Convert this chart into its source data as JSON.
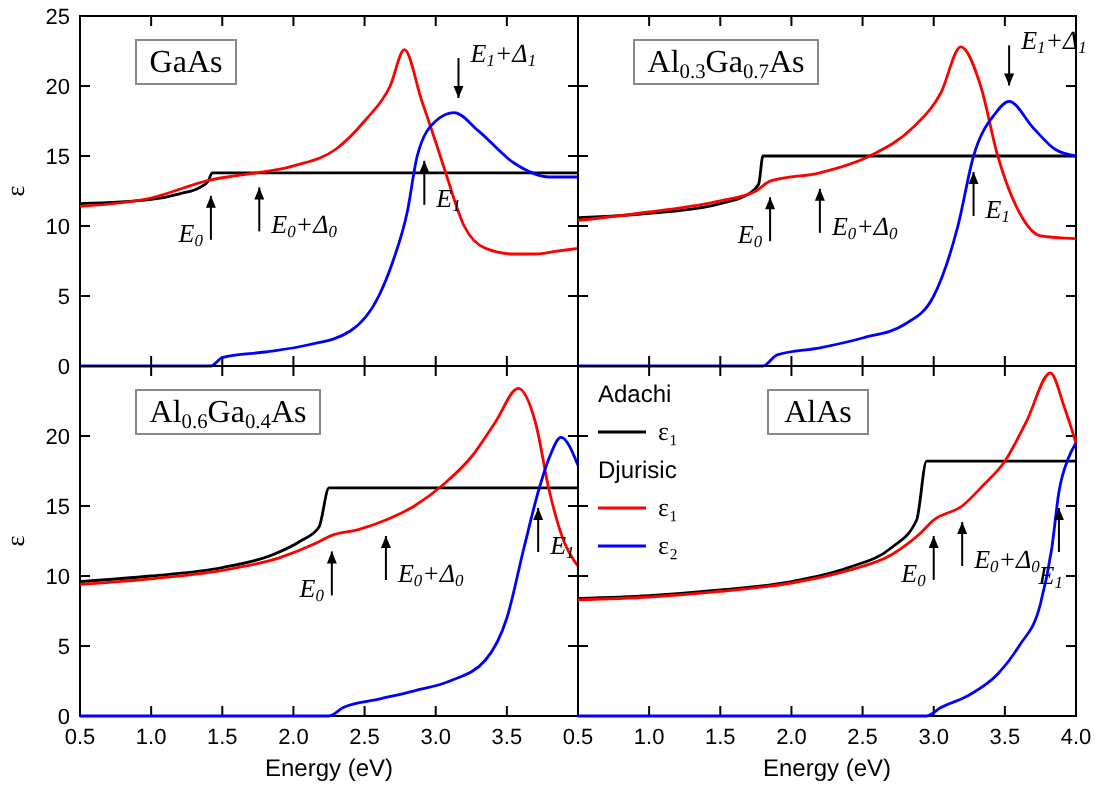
{
  "chart_data": [
    {
      "type": "line",
      "title": "GaAs",
      "ylabel": "ε",
      "xlim": [
        0.5,
        4.0
      ],
      "ylim": [
        0,
        25
      ],
      "xticks": [
        0.5,
        1,
        1.5,
        2,
        2.5,
        3,
        3.5
      ],
      "yticks": [
        0,
        5,
        10,
        15,
        20,
        25
      ],
      "tick_labels": "y",
      "legend": false,
      "series": [
        {
          "color": "#000000",
          "x": [
            0.5,
            1.0,
            1.2,
            1.35,
            1.4,
            1.43,
            4.0
          ],
          "values": [
            11.6,
            11.9,
            12.3,
            12.8,
            13.2,
            13.8,
            13.8
          ]
        },
        {
          "color": "#ff0000",
          "x": [
            0.5,
            1.0,
            1.42,
            1.6,
            2.0,
            2.3,
            2.5,
            2.68,
            2.78,
            2.9,
            3.0,
            3.07,
            3.2,
            3.35,
            3.55,
            3.7,
            3.85,
            4.0
          ],
          "values": [
            11.4,
            12.0,
            13.3,
            13.6,
            14.3,
            15.5,
            17.5,
            20.0,
            22.6,
            19.0,
            16.0,
            13.8,
            10.0,
            8.4,
            8.0,
            8.0,
            8.2,
            8.4
          ]
        },
        {
          "color": "#0000ff",
          "x": [
            0.5,
            1.42,
            1.5,
            1.8,
            2.1,
            2.4,
            2.6,
            2.7,
            2.8,
            2.87,
            3.0,
            3.13,
            3.3,
            3.55,
            3.8,
            4.0
          ],
          "values": [
            0,
            0,
            0.6,
            1.0,
            1.5,
            2.5,
            5.0,
            7.5,
            11.0,
            15.0,
            17.5,
            18.1,
            16.8,
            14.5,
            13.5,
            13.5
          ]
        }
      ],
      "annotations": [
        {
          "text": "E$_{0}$",
          "x": 1.42,
          "y": 13.3
        },
        {
          "text": "E$_{0}$+Δ$_{0}$",
          "x": 1.76,
          "y": 13.9
        },
        {
          "text": "E$_{1}$",
          "x": 2.92,
          "y": 15.8
        },
        {
          "text": "E$_{1}$+Δ$_{1}$",
          "x": 3.16,
          "y": 18.0
        }
      ]
    },
    {
      "type": "line",
      "title": "Al$_{0.3}$Ga$_{0.7}$As",
      "xlim": [
        0.5,
        4.0
      ],
      "ylim": [
        0,
        25
      ],
      "xticks": [
        0.5,
        1.0,
        1.5,
        2.0,
        2.5,
        3.0,
        3.5,
        4.0
      ],
      "yticks": [
        0,
        5,
        10,
        15,
        20,
        25
      ],
      "tick_labels": false,
      "legend": false,
      "series": [
        {
          "color": "#000000",
          "x": [
            0.5,
            1.0,
            1.5,
            1.7,
            1.77,
            1.8,
            4.0
          ],
          "values": [
            10.6,
            10.9,
            11.6,
            12.3,
            13.0,
            15.0,
            15.0
          ]
        },
        {
          "color": "#ff0000",
          "x": [
            0.5,
            1.0,
            1.5,
            1.75,
            1.85,
            2.2,
            2.55,
            2.85,
            3.05,
            3.19,
            3.33,
            3.45,
            3.6,
            3.75,
            4.0
          ],
          "values": [
            10.4,
            11.0,
            11.8,
            12.5,
            13.2,
            13.8,
            15.0,
            17.0,
            19.5,
            22.8,
            20.0,
            15.0,
            11.0,
            9.3,
            9.1
          ]
        },
        {
          "color": "#0000ff",
          "x": [
            0.5,
            1.8,
            1.9,
            2.2,
            2.5,
            2.8,
            3.0,
            3.17,
            3.28,
            3.43,
            3.53,
            3.7,
            3.85,
            4.0
          ],
          "values": [
            0,
            0,
            0.8,
            1.3,
            2.0,
            3.0,
            5.0,
            10.0,
            15.0,
            18.0,
            18.9,
            17.0,
            15.5,
            15.0
          ]
        }
      ],
      "annotations": [
        {
          "text": "E$_{0}$",
          "x": 1.85,
          "y": 13.2
        },
        {
          "text": "E$_{0}$+Δ$_{0}$",
          "x": 2.2,
          "y": 13.8
        },
        {
          "text": "E$_{1}$",
          "x": 3.28,
          "y": 15.0
        },
        {
          "text": "E$_{1}$+Δ$_{1}$",
          "x": 3.53,
          "y": 18.9
        }
      ]
    },
    {
      "type": "line",
      "title": "Al$_{0.6}$Ga$_{0.4}$As",
      "xlabel": "Energy (eV)",
      "ylabel": "ε",
      "xlim": [
        0.5,
        4.0
      ],
      "ylim": [
        0,
        25
      ],
      "xticks": [
        0.5,
        {
          "value": 1,
          "label": "1.0"
        },
        1.5,
        {
          "value": 2,
          "label": "2.0"
        },
        2.5,
        {
          "value": 3,
          "label": "3.0"
        },
        3.5
      ],
      "yticks": [
        0,
        5,
        10,
        15,
        20
      ],
      "legend": false,
      "series": [
        {
          "color": "#000000",
          "x": [
            0.5,
            1.0,
            1.5,
            1.85,
            2.05,
            2.18,
            2.25,
            4.0
          ],
          "values": [
            9.6,
            10.0,
            10.6,
            11.5,
            12.5,
            13.5,
            16.3,
            16.3
          ]
        },
        {
          "color": "#ff0000",
          "x": [
            0.5,
            1.0,
            1.5,
            1.9,
            2.15,
            2.27,
            2.45,
            2.65,
            2.85,
            3.05,
            3.25,
            3.42,
            3.58,
            3.7,
            3.8,
            3.9,
            4.0
          ],
          "values": [
            9.4,
            9.8,
            10.4,
            11.3,
            12.3,
            12.9,
            13.3,
            14.0,
            15.0,
            16.5,
            18.5,
            21.0,
            23.4,
            21.0,
            16.0,
            12.5,
            10.7
          ]
        },
        {
          "color": "#0000ff",
          "x": [
            0.5,
            2.25,
            2.35,
            2.6,
            2.85,
            3.1,
            3.35,
            3.5,
            3.62,
            3.72,
            3.8,
            3.88,
            4.0
          ],
          "values": [
            0,
            0,
            0.6,
            1.2,
            1.8,
            2.5,
            4.0,
            7.0,
            12.0,
            16.0,
            18.5,
            19.9,
            17.9
          ]
        }
      ],
      "annotations": [
        {
          "text": "E$_{0}$",
          "x": 2.27,
          "y": 12.9
        },
        {
          "text": "E$_{0}$+Δ$_{0}$",
          "x": 2.65,
          "y": 14.0
        },
        {
          "text": "E$_{1}$",
          "x": 3.72,
          "y": 16.0
        }
      ]
    },
    {
      "type": "line",
      "title": "AlAs",
      "xlabel": "Energy (eV)",
      "xlim": [
        0.5,
        4.0
      ],
      "ylim": [
        0,
        25
      ],
      "xticks": [
        0.5,
        {
          "value": 1,
          "label": "1.0"
        },
        1.5,
        {
          "value": 2,
          "label": "2.0"
        },
        2.5,
        {
          "value": 3,
          "label": "3.0"
        },
        3.5,
        {
          "value": 4,
          "label": "4.0"
        }
      ],
      "yticks": [
        0,
        5,
        10,
        15,
        20,
        25
      ],
      "tick_labels": "x",
      "legend": "top left",
      "series": [
        {
          "name": "ε₁",
          "color": "#000000",
          "x": [
            0.5,
            1.0,
            1.5,
            2.0,
            2.4,
            2.7,
            2.88,
            2.95,
            4.0
          ],
          "values": [
            8.4,
            8.6,
            9.0,
            9.6,
            10.6,
            12.0,
            14.0,
            18.2,
            18.2
          ]
        },
        {
          "name": "ε₁",
          "color": "#ff0000",
          "x": [
            0.5,
            1.0,
            1.5,
            2.0,
            2.4,
            2.7,
            2.9,
            3.0,
            3.2,
            3.35,
            3.5,
            3.65,
            3.82,
            3.92,
            4.0
          ],
          "values": [
            8.3,
            8.5,
            8.9,
            9.5,
            10.4,
            11.5,
            13.0,
            14.0,
            15.0,
            16.5,
            18.2,
            21.0,
            24.5,
            22.0,
            19.5
          ]
        },
        {
          "name": "ε₂",
          "color": "#0000ff",
          "x": [
            0.5,
            2.95,
            3.05,
            3.25,
            3.45,
            3.6,
            3.75,
            3.83,
            3.88,
            3.95,
            4.0
          ],
          "values": [
            0,
            0,
            0.6,
            1.5,
            3.0,
            5.0,
            8.0,
            12.0,
            16.0,
            18.5,
            19.5
          ]
        }
      ],
      "annotations": [
        "Adachi",
        "Djurisic",
        {
          "text": "E$_{0}$",
          "x": 3.0,
          "y": 14.0
        },
        {
          "text": "E$_{0}$+Δ$_{0}$",
          "x": 3.2,
          "y": 15.0
        },
        {
          "text": "E$_{1}$",
          "x": 3.88,
          "y": 16.0
        }
      ]
    }
  ]
}
